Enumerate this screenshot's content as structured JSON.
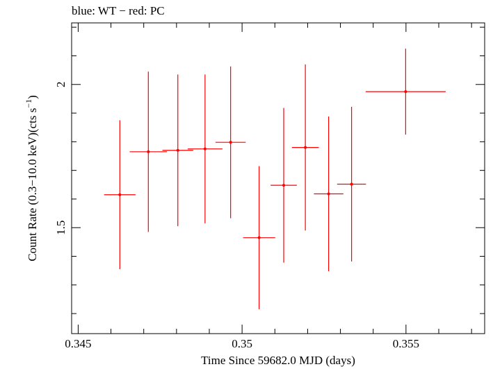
{
  "chart_data": {
    "type": "scatter",
    "title": "blue: WT − red: PC",
    "xlabel": "Time Since 59682.0 MJD (days)",
    "ylabel_main": "Count Rate (0.3−10.0 keV)(cts s",
    "ylabel_sup": "−1",
    "ylabel_end": ")",
    "xlim": [
      0.3448,
      0.3574
    ],
    "ylim": [
      1.13,
      2.215
    ],
    "xticks": [
      {
        "value": 0.345,
        "label": "0.345"
      },
      {
        "value": 0.35,
        "label": "0.35"
      },
      {
        "value": 0.355,
        "label": "0.355"
      }
    ],
    "xminor": [
      0.346,
      0.347,
      0.348,
      0.349,
      0.351,
      0.352,
      0.353,
      0.354,
      0.356,
      0.357
    ],
    "yticks": [
      {
        "value": 1.5,
        "label": "1.5"
      },
      {
        "value": 2.0,
        "label": "2"
      }
    ],
    "yminor": [
      1.2,
      1.3,
      1.4,
      1.6,
      1.7,
      1.8,
      1.9,
      2.1,
      2.2
    ],
    "grid": false,
    "series": [
      {
        "color": "#ff0000",
        "points": [
          {
            "x": 0.34627,
            "xerr": 0.00048,
            "y": 1.615,
            "yerr_low": 0.26,
            "yerr_high": 0.26
          },
          {
            "x": 0.34714,
            "xerr": 0.00057,
            "y": 1.765,
            "yerr_low": 0.28,
            "yerr_high": 0.28
          },
          {
            "x": 0.34804,
            "xerr": 0.00047,
            "y": 1.77,
            "yerr_low": 0.265,
            "yerr_high": 0.265
          },
          {
            "x": 0.34887,
            "xerr": 0.00053,
            "y": 1.775,
            "yerr_low": 0.26,
            "yerr_high": 0.26
          },
          {
            "x": 0.34965,
            "xerr": 0.00046,
            "y": 1.798,
            "yerr_low": 0.265,
            "yerr_high": 0.265
          },
          {
            "x": 0.35052,
            "xerr": 0.00049,
            "y": 1.465,
            "yerr_low": 0.25,
            "yerr_high": 0.25
          },
          {
            "x": 0.35127,
            "xerr": 0.0004,
            "y": 1.648,
            "yerr_low": 0.27,
            "yerr_high": 0.27
          },
          {
            "x": 0.35193,
            "xerr": 0.00041,
            "y": 1.78,
            "yerr_low": 0.29,
            "yerr_high": 0.29
          },
          {
            "x": 0.35264,
            "xerr": 0.00045,
            "y": 1.618,
            "yerr_low": 0.27,
            "yerr_high": 0.27
          },
          {
            "x": 0.35334,
            "xerr": 0.00044,
            "y": 1.652,
            "yerr_low": 0.27,
            "yerr_high": 0.27
          },
          {
            "x": 0.35499,
            "xerr": 0.00122,
            "y": 1.975,
            "yerr_low": 0.15,
            "yerr_high": 0.15
          }
        ]
      }
    ]
  }
}
